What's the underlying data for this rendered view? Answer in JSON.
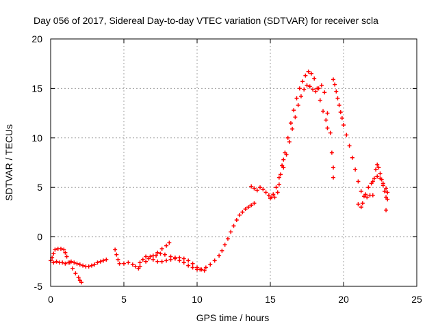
{
  "chart_data": {
    "type": "scatter",
    "title": "Day 056 of 2017, Sidereal Day-to-day VTEC variation (SDTVAR) for receiver scla",
    "xlabel": "GPS time / hours",
    "ylabel": "SDTVAR / TECUs",
    "xlim": [
      0,
      25
    ],
    "ylim": [
      -5,
      20
    ],
    "xticks": [
      0,
      5,
      10,
      15,
      20,
      25
    ],
    "yticks": [
      -5,
      0,
      5,
      10,
      15,
      20
    ],
    "xtick_labels": [
      "0",
      "5",
      "10",
      "15",
      "20",
      "25"
    ],
    "ytick_labels": [
      "-5",
      "0",
      "5",
      "10",
      "15",
      "20"
    ],
    "grid": true,
    "marker": "+",
    "color": "#ff0000",
    "series": [
      {
        "points": [
          [
            0.0,
            -2.4
          ],
          [
            0.2,
            -2.6
          ],
          [
            0.4,
            -2.5
          ],
          [
            0.6,
            -2.6
          ],
          [
            0.8,
            -2.6
          ],
          [
            1.0,
            -2.7
          ],
          [
            1.2,
            -2.6
          ],
          [
            1.4,
            -2.5
          ],
          [
            1.6,
            -2.6
          ],
          [
            1.8,
            -2.7
          ],
          [
            2.0,
            -2.8
          ],
          [
            2.2,
            -2.9
          ],
          [
            2.4,
            -3.0
          ],
          [
            2.6,
            -3.0
          ],
          [
            2.8,
            -2.9
          ],
          [
            3.0,
            -2.8
          ],
          [
            3.2,
            -2.6
          ],
          [
            3.4,
            -2.5
          ],
          [
            3.6,
            -2.4
          ],
          [
            3.8,
            -2.3
          ],
          [
            0.1,
            -2.1
          ],
          [
            0.2,
            -1.7
          ],
          [
            0.3,
            -1.3
          ],
          [
            0.5,
            -1.2
          ],
          [
            0.7,
            -1.2
          ],
          [
            0.9,
            -1.3
          ],
          [
            1.0,
            -1.6
          ],
          [
            1.1,
            -2.0
          ],
          [
            1.3,
            -2.6
          ],
          [
            1.5,
            -3.2
          ],
          [
            1.7,
            -3.7
          ],
          [
            1.9,
            -4.1
          ],
          [
            2.0,
            -4.4
          ],
          [
            2.1,
            -4.6
          ],
          [
            4.4,
            -1.3
          ],
          [
            4.5,
            -1.8
          ],
          [
            4.6,
            -2.3
          ],
          [
            4.7,
            -2.7
          ],
          [
            5.0,
            -2.7
          ],
          [
            5.3,
            -2.6
          ],
          [
            5.6,
            -2.8
          ],
          [
            5.8,
            -3.0
          ],
          [
            6.0,
            -3.2
          ],
          [
            6.1,
            -3.0
          ],
          [
            6.1,
            -2.6
          ],
          [
            6.3,
            -2.3
          ],
          [
            6.5,
            -2.5
          ],
          [
            6.7,
            -2.2
          ],
          [
            7.0,
            -1.9
          ],
          [
            7.3,
            -1.6
          ],
          [
            7.6,
            -1.2
          ],
          [
            7.9,
            -0.9
          ],
          [
            8.1,
            -0.6
          ],
          [
            6.5,
            -2.0
          ],
          [
            6.8,
            -2.0
          ],
          [
            7.0,
            -2.3
          ],
          [
            7.3,
            -2.5
          ],
          [
            7.6,
            -2.5
          ],
          [
            7.9,
            -2.4
          ],
          [
            8.2,
            -2.3
          ],
          [
            8.5,
            -2.1
          ],
          [
            8.8,
            -2.1
          ],
          [
            9.1,
            -2.2
          ],
          [
            9.4,
            -2.4
          ],
          [
            9.7,
            -2.7
          ],
          [
            10.0,
            -3.1
          ],
          [
            10.2,
            -3.3
          ],
          [
            10.5,
            -3.4
          ],
          [
            7.2,
            -1.9
          ],
          [
            7.5,
            -1.7
          ],
          [
            7.8,
            -1.8
          ],
          [
            8.2,
            -2.0
          ],
          [
            8.5,
            -2.2
          ],
          [
            8.8,
            -2.4
          ],
          [
            9.1,
            -2.6
          ],
          [
            9.4,
            -2.9
          ],
          [
            9.7,
            -3.1
          ],
          [
            10.0,
            -3.3
          ],
          [
            10.3,
            -3.3
          ],
          [
            10.6,
            -3.1
          ],
          [
            10.9,
            -2.8
          ],
          [
            11.2,
            -2.4
          ],
          [
            11.5,
            -1.9
          ],
          [
            11.7,
            -1.4
          ],
          [
            11.9,
            -0.8
          ],
          [
            12.1,
            -0.2
          ],
          [
            12.3,
            0.5
          ],
          [
            12.5,
            1.1
          ],
          [
            12.7,
            1.7
          ],
          [
            12.9,
            2.2
          ],
          [
            13.1,
            2.5
          ],
          [
            13.3,
            2.8
          ],
          [
            13.5,
            3.0
          ],
          [
            13.7,
            3.2
          ],
          [
            13.9,
            3.4
          ],
          [
            13.7,
            5.1
          ],
          [
            13.9,
            4.9
          ],
          [
            14.1,
            4.7
          ],
          [
            14.3,
            5.0
          ],
          [
            14.5,
            4.8
          ],
          [
            14.7,
            4.5
          ],
          [
            14.9,
            4.2
          ],
          [
            15.1,
            4.0
          ],
          [
            15.3,
            4.0
          ],
          [
            15.5,
            4.5
          ],
          [
            15.6,
            5.3
          ],
          [
            15.7,
            6.3
          ],
          [
            15.8,
            7.2
          ],
          [
            15.9,
            7.8
          ],
          [
            15.0,
            3.9
          ],
          [
            15.2,
            4.3
          ],
          [
            15.4,
            5.0
          ],
          [
            15.6,
            6.0
          ],
          [
            15.8,
            7.2
          ],
          [
            16.0,
            8.5
          ],
          [
            16.2,
            10.0
          ],
          [
            16.4,
            11.5
          ],
          [
            16.6,
            12.8
          ],
          [
            16.8,
            14.0
          ],
          [
            17.0,
            15.0
          ],
          [
            17.2,
            15.7
          ],
          [
            17.4,
            16.3
          ],
          [
            17.6,
            16.7
          ],
          [
            17.8,
            16.5
          ],
          [
            18.0,
            16.0
          ],
          [
            18.2,
            15.0
          ],
          [
            18.4,
            13.8
          ],
          [
            18.6,
            12.7
          ],
          [
            18.8,
            11.8
          ],
          [
            18.9,
            11.0
          ],
          [
            15.9,
            7.0
          ],
          [
            16.1,
            8.3
          ],
          [
            16.3,
            9.6
          ],
          [
            16.5,
            10.9
          ],
          [
            16.7,
            12.1
          ],
          [
            16.9,
            13.3
          ],
          [
            17.1,
            14.2
          ],
          [
            17.3,
            14.9
          ],
          [
            17.5,
            15.3
          ],
          [
            17.7,
            15.2
          ],
          [
            17.9,
            14.9
          ],
          [
            18.1,
            14.7
          ],
          [
            18.3,
            15.0
          ],
          [
            18.5,
            15.3
          ],
          [
            18.7,
            14.6
          ],
          [
            18.9,
            12.5
          ],
          [
            19.1,
            10.5
          ],
          [
            19.2,
            8.5
          ],
          [
            19.3,
            7.0
          ],
          [
            19.3,
            6.0
          ],
          [
            19.3,
            15.9
          ],
          [
            19.4,
            15.4
          ],
          [
            19.5,
            14.7
          ],
          [
            19.6,
            14.0
          ],
          [
            19.7,
            13.3
          ],
          [
            19.8,
            12.6
          ],
          [
            19.9,
            12.0
          ],
          [
            20.0,
            11.3
          ],
          [
            20.2,
            10.3
          ],
          [
            20.4,
            9.2
          ],
          [
            20.6,
            8.0
          ],
          [
            20.8,
            6.8
          ],
          [
            21.0,
            5.6
          ],
          [
            21.2,
            4.6
          ],
          [
            21.4,
            4.1
          ],
          [
            21.6,
            4.0
          ],
          [
            21.8,
            4.2
          ],
          [
            22.0,
            4.2
          ],
          [
            21.0,
            3.3
          ],
          [
            21.2,
            3.0
          ],
          [
            21.3,
            3.4
          ],
          [
            21.5,
            4.3
          ],
          [
            21.7,
            5.0
          ],
          [
            21.9,
            5.4
          ],
          [
            22.0,
            5.6
          ],
          [
            22.1,
            5.9
          ],
          [
            22.2,
            6.8
          ],
          [
            22.3,
            7.3
          ],
          [
            22.4,
            7.0
          ],
          [
            22.5,
            6.4
          ],
          [
            22.6,
            5.8
          ],
          [
            22.7,
            5.2
          ],
          [
            22.8,
            4.6
          ],
          [
            22.9,
            4.0
          ],
          [
            23.0,
            3.8
          ],
          [
            22.9,
            2.7
          ],
          [
            22.3,
            6.1
          ],
          [
            22.5,
            5.9
          ],
          [
            22.7,
            5.4
          ],
          [
            22.9,
            4.9
          ],
          [
            23.0,
            4.5
          ]
        ]
      }
    ]
  }
}
